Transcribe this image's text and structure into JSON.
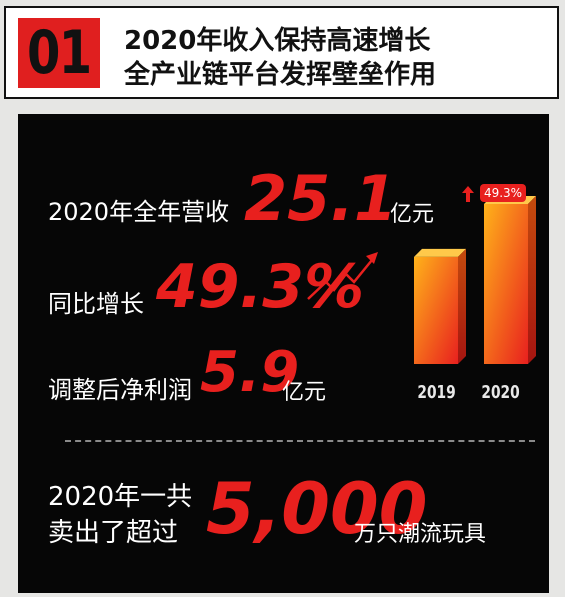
{
  "header": {
    "number": "01",
    "line1": "2020年收入保持高速增长",
    "line2": "全产业链平台发挥壁垒作用"
  },
  "stats": {
    "revenue_label": "2020年全年营收",
    "revenue_value": "25.1",
    "revenue_unit": "亿元",
    "growth_label": "同比增长",
    "growth_value": "49.3%",
    "profit_label": "调整后净利润",
    "profit_value": "5.9",
    "profit_unit": "亿元"
  },
  "sales": {
    "line1": "2020年一共",
    "line2": "卖出了超过",
    "value": "5,000",
    "unit": "万只潮流玩具"
  },
  "chart_data": {
    "type": "bar",
    "categories": [
      "2019",
      "2020"
    ],
    "values": [
      16.8,
      25.1
    ],
    "annotation": "49.3%",
    "colors": {
      "bar_light": "#ffb21a",
      "bar_dark": "#e8201e",
      "accent": "#e8201e"
    }
  }
}
